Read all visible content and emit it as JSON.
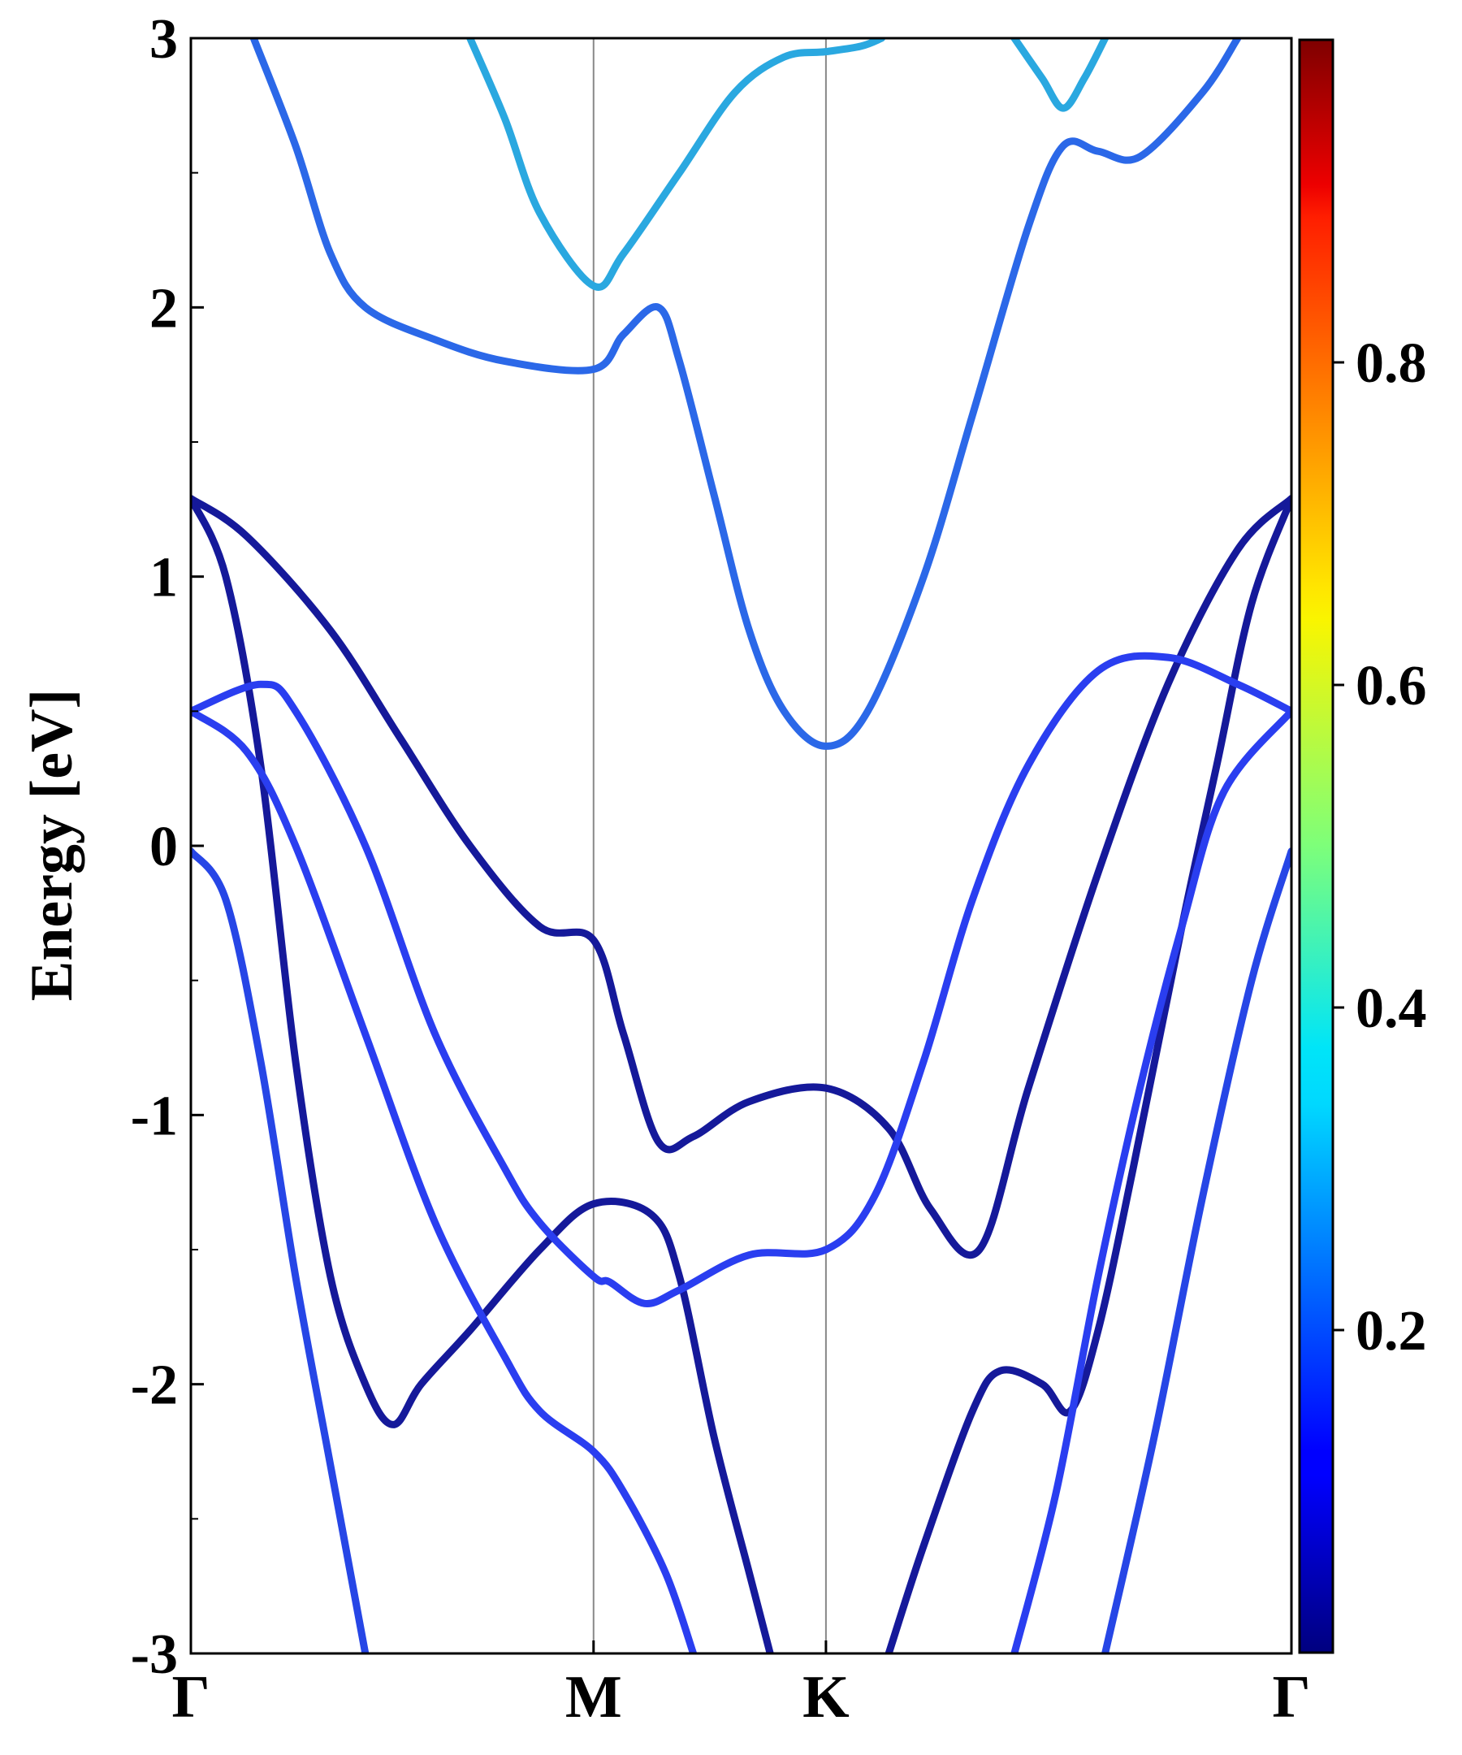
{
  "chart_data": {
    "type": "line",
    "ylabel": "Energy [eV]",
    "xlabel": "",
    "title": "",
    "ylim": [
      -3,
      3
    ],
    "yticks": [
      {
        "value": 3,
        "label": "3"
      },
      {
        "value": 2,
        "label": "2"
      },
      {
        "value": 1,
        "label": "1"
      },
      {
        "value": 0,
        "label": "0"
      },
      {
        "value": -1,
        "label": "-1"
      },
      {
        "value": -2,
        "label": "-2"
      },
      {
        "value": -3,
        "label": "-3"
      }
    ],
    "kpath": [
      {
        "label": "Γ",
        "position": 0.0
      },
      {
        "label": "M",
        "position": 0.577
      },
      {
        "label": "K",
        "position": 0.91
      },
      {
        "label": "Γ",
        "position": 1.577
      }
    ],
    "colorbar": {
      "colormap": "jet",
      "range": [
        0,
        1
      ],
      "ticks": [
        {
          "value": 0.2,
          "label": "0.2"
        },
        {
          "value": 0.4,
          "label": "0.4"
        },
        {
          "value": 0.6,
          "label": "0.6"
        },
        {
          "value": 0.8,
          "label": "0.8"
        }
      ]
    },
    "series": [
      {
        "color": "#15199a",
        "points": [
          [
            0,
            1.29
          ],
          [
            0.08,
            1.15
          ],
          [
            0.2,
            0.8
          ],
          [
            0.3,
            0.4
          ],
          [
            0.4,
            0.0
          ],
          [
            0.5,
            -0.3
          ],
          [
            0.577,
            -0.35
          ],
          [
            0.62,
            -0.7
          ],
          [
            0.67,
            -1.1
          ],
          [
            0.72,
            -1.08
          ],
          [
            0.8,
            -0.95
          ],
          [
            0.91,
            -0.9
          ],
          [
            1.0,
            -1.05
          ],
          [
            1.06,
            -1.35
          ],
          [
            1.13,
            -1.5
          ],
          [
            1.2,
            -0.9
          ],
          [
            1.3,
            -0.1
          ],
          [
            1.4,
            0.6
          ],
          [
            1.5,
            1.1
          ],
          [
            1.577,
            1.29
          ]
        ]
      },
      {
        "color": "#15199a",
        "points": [
          [
            0,
            1.29
          ],
          [
            0.05,
            1.0
          ],
          [
            0.1,
            0.3
          ],
          [
            0.15,
            -0.8
          ],
          [
            0.2,
            -1.6
          ],
          [
            0.25,
            -2.0
          ],
          [
            0.29,
            -2.15
          ],
          [
            0.33,
            -2.0
          ],
          [
            0.4,
            -1.8
          ],
          [
            0.5,
            -1.5
          ],
          [
            0.577,
            -1.33
          ],
          [
            0.66,
            -1.37
          ],
          [
            0.7,
            -1.6
          ],
          [
            0.75,
            -2.2
          ],
          [
            0.8,
            -2.7
          ],
          [
            0.83,
            -3.0
          ]
        ]
      },
      {
        "color": "#15199a",
        "points": [
          [
            1.0,
            -3.0
          ],
          [
            1.05,
            -2.6
          ],
          [
            1.12,
            -2.1
          ],
          [
            1.16,
            -1.95
          ],
          [
            1.22,
            -2.0
          ],
          [
            1.26,
            -2.1
          ],
          [
            1.3,
            -1.8
          ],
          [
            1.35,
            -1.2
          ],
          [
            1.42,
            -0.3
          ],
          [
            1.47,
            0.3
          ],
          [
            1.52,
            0.9
          ],
          [
            1.577,
            1.29
          ]
        ]
      },
      {
        "color": "#2a3ef0",
        "points": [
          [
            0,
            0.5
          ],
          [
            0.1,
            0.6
          ],
          [
            0.15,
            0.5
          ],
          [
            0.25,
            0.0
          ],
          [
            0.35,
            -0.7
          ],
          [
            0.45,
            -1.2
          ],
          [
            0.5,
            -1.4
          ],
          [
            0.577,
            -1.6
          ],
          [
            0.6,
            -1.62
          ],
          [
            0.65,
            -1.7
          ],
          [
            0.7,
            -1.65
          ],
          [
            0.8,
            -1.52
          ],
          [
            0.91,
            -1.5
          ],
          [
            0.98,
            -1.3
          ],
          [
            1.05,
            -0.8
          ],
          [
            1.12,
            -0.2
          ],
          [
            1.2,
            0.3
          ],
          [
            1.3,
            0.65
          ],
          [
            1.4,
            0.7
          ],
          [
            1.5,
            0.6
          ],
          [
            1.577,
            0.5
          ]
        ]
      },
      {
        "color": "#2a3ef0",
        "points": [
          [
            0,
            0.5
          ],
          [
            0.08,
            0.35
          ],
          [
            0.15,
            0.0
          ],
          [
            0.25,
            -0.7
          ],
          [
            0.35,
            -1.4
          ],
          [
            0.45,
            -1.9
          ],
          [
            0.5,
            -2.1
          ],
          [
            0.577,
            -2.25
          ],
          [
            0.62,
            -2.4
          ],
          [
            0.68,
            -2.7
          ],
          [
            0.72,
            -3.0
          ]
        ]
      },
      {
        "color": "#2a3ef0",
        "points": [
          [
            1.18,
            -3.0
          ],
          [
            1.24,
            -2.4
          ],
          [
            1.3,
            -1.6
          ],
          [
            1.36,
            -0.9
          ],
          [
            1.42,
            -0.3
          ],
          [
            1.48,
            0.2
          ],
          [
            1.577,
            0.5
          ]
        ]
      },
      {
        "color": "#2646e6",
        "points": [
          [
            0,
            -0.02
          ],
          [
            0.05,
            -0.2
          ],
          [
            0.1,
            -0.8
          ],
          [
            0.15,
            -1.6
          ],
          [
            0.2,
            -2.3
          ],
          [
            0.25,
            -3.0
          ]
        ]
      },
      {
        "color": "#2646e6",
        "points": [
          [
            1.31,
            -3.0
          ],
          [
            1.38,
            -2.2
          ],
          [
            1.45,
            -1.3
          ],
          [
            1.52,
            -0.5
          ],
          [
            1.577,
            -0.02
          ]
        ]
      },
      {
        "color": "#2b68e8",
        "points": [
          [
            0.09,
            3.0
          ],
          [
            0.15,
            2.6
          ],
          [
            0.2,
            2.2
          ],
          [
            0.25,
            2.0
          ],
          [
            0.35,
            1.88
          ],
          [
            0.45,
            1.8
          ],
          [
            0.577,
            1.77
          ],
          [
            0.62,
            1.9
          ],
          [
            0.67,
            2.0
          ],
          [
            0.7,
            1.8
          ],
          [
            0.75,
            1.3
          ],
          [
            0.8,
            0.8
          ],
          [
            0.85,
            0.5
          ],
          [
            0.91,
            0.37
          ],
          [
            0.97,
            0.5
          ],
          [
            1.05,
            1.0
          ],
          [
            1.12,
            1.6
          ],
          [
            1.2,
            2.3
          ],
          [
            1.25,
            2.6
          ],
          [
            1.3,
            2.58
          ],
          [
            1.36,
            2.56
          ],
          [
            1.45,
            2.8
          ],
          [
            1.5,
            3.0
          ]
        ]
      },
      {
        "color": "#2aa8e0",
        "points": [
          [
            0.4,
            3.0
          ],
          [
            0.45,
            2.7
          ],
          [
            0.5,
            2.35
          ],
          [
            0.577,
            2.08
          ],
          [
            0.62,
            2.2
          ],
          [
            0.7,
            2.5
          ],
          [
            0.78,
            2.8
          ],
          [
            0.85,
            2.93
          ],
          [
            0.91,
            2.95
          ],
          [
            0.96,
            2.97
          ],
          [
            0.99,
            3.0
          ]
        ]
      },
      {
        "color": "#2aa8e0",
        "points": [
          [
            1.18,
            3.0
          ],
          [
            1.22,
            2.85
          ],
          [
            1.25,
            2.74
          ],
          [
            1.28,
            2.85
          ],
          [
            1.31,
            3.0
          ]
        ]
      }
    ]
  }
}
